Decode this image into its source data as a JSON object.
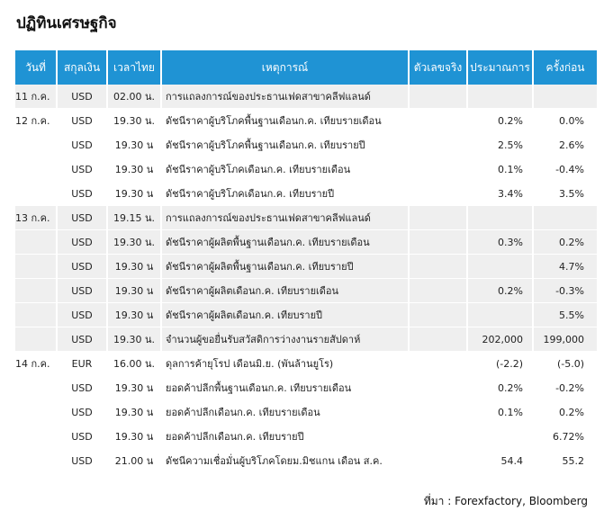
{
  "title": "ปฏิทินเศรษฐกิจ",
  "columns": [
    "วันที่",
    "สกุลเงิน",
    "เวลาไทย",
    "เหตุการณ์",
    "ตัวเลขจริง",
    "ประมาณการ",
    "ครั้งก่อน"
  ],
  "rows": [
    {
      "date": "11 ก.ค.",
      "currency": "USD",
      "time": "02.00 น.",
      "event": "การแถลงการณ์ของประธานเฟดสาขาคลีฟแลนด์",
      "actual": "",
      "forecast": "",
      "previous": ""
    },
    {
      "date": "12 ก.ค.",
      "currency": "USD",
      "time": "19.30 น.",
      "event": "ดัชนีราคาผู้บริโภคพื้นฐานเดือนก.ค. เทียบรายเดือน",
      "actual": "",
      "forecast": "0.2%",
      "previous": "0.0%"
    },
    {
      "date": "",
      "currency": "USD",
      "time": "19.30 น",
      "event": "ดัชนีราคาผู้บริโภคพื้นฐานเดือนก.ค. เทียบรายปี",
      "actual": "",
      "forecast": "2.5%",
      "previous": "2.6%"
    },
    {
      "date": "",
      "currency": "USD",
      "time": "19.30 น",
      "event": "ดัชนีราคาผู้บริโภคเดือนก.ค. เทียบรายเดือน",
      "actual": "",
      "forecast": "0.1%",
      "previous": "-0.4%"
    },
    {
      "date": "",
      "currency": "USD",
      "time": "19.30 น",
      "event": "ดัชนีราคาผู้บริโภคเดือนก.ค. เทียบรายปี",
      "actual": "",
      "forecast": "3.4%",
      "previous": "3.5%"
    },
    {
      "date": "13 ก.ค.",
      "currency": "USD",
      "time": "19.15 น.",
      "event": "การแถลงการณ์ของประธานเฟดสาขาคลีฟแลนด์",
      "actual": "",
      "forecast": "",
      "previous": ""
    },
    {
      "date": "",
      "currency": "USD",
      "time": "19.30 น.",
      "event": "ดัชนีราคาผู้ผลิตพื้นฐานเดือนก.ค. เทียบรายเดือน",
      "actual": "",
      "forecast": "0.3%",
      "previous": "0.2%"
    },
    {
      "date": "",
      "currency": "USD",
      "time": "19.30 น",
      "event": "ดัชนีราคาผู้ผลิตพื้นฐานเดือนก.ค. เทียบรายปี",
      "actual": "",
      "forecast": "",
      "previous": "4.7%"
    },
    {
      "date": "",
      "currency": "USD",
      "time": "19.30 น",
      "event": "ดัชนีราคาผู้ผลิตเดือนก.ค. เทียบรายเดือน",
      "actual": "",
      "forecast": "0.2%",
      "previous": "-0.3%"
    },
    {
      "date": "",
      "currency": "USD",
      "time": "19.30 น",
      "event": "ดัชนีราคาผู้ผลิตเดือนก.ค. เทียบรายปี",
      "actual": "",
      "forecast": "",
      "previous": "5.5%"
    },
    {
      "date": "",
      "currency": "USD",
      "time": "19.30 น.",
      "event": "จำนวนผู้ขอยื่นรับสวัสดิการว่างงานรายสัปดาห์",
      "actual": "",
      "forecast": "202,000",
      "previous": "199,000"
    },
    {
      "date": "14 ก.ค.",
      "currency": "EUR",
      "time": "16.00 น.",
      "event": "ดุลการค้ายุโรป เดือนมิ.ย. (พันล้านยูโร)",
      "actual": "",
      "forecast": "(-2.2)",
      "previous": "(-5.0)"
    },
    {
      "date": "",
      "currency": "USD",
      "time": "19.30 น",
      "event": "ยอดค้าปลีกพื้นฐานเดือนก.ค. เทียบรายเดือน",
      "actual": "",
      "forecast": "0.2%",
      "previous": "-0.2%"
    },
    {
      "date": "",
      "currency": "USD",
      "time": "19.30 น",
      "event": "ยอดค้าปลีกเดือนก.ค. เทียบรายเดือน",
      "actual": "",
      "forecast": "0.1%",
      "previous": "0.2%"
    },
    {
      "date": "",
      "currency": "USD",
      "time": "19.30 น",
      "event": "ยอดค้าปลีกเดือนก.ค. เทียบรายปี",
      "actual": "",
      "forecast": "",
      "previous": "6.72%"
    },
    {
      "date": "",
      "currency": "USD",
      "time": "21.00 น",
      "event": "ดัชนีความเชื่อมั่นผู้บริโภคโดยม.มิชแกน เดือน ส.ค.",
      "actual": "",
      "forecast": "54.4",
      "previous": "55.2"
    }
  ],
  "source": "ที่มา : Forexfactory, Bloomberg",
  "colors": {
    "header_bg": "#1f93d4",
    "shade": "#efefef"
  }
}
